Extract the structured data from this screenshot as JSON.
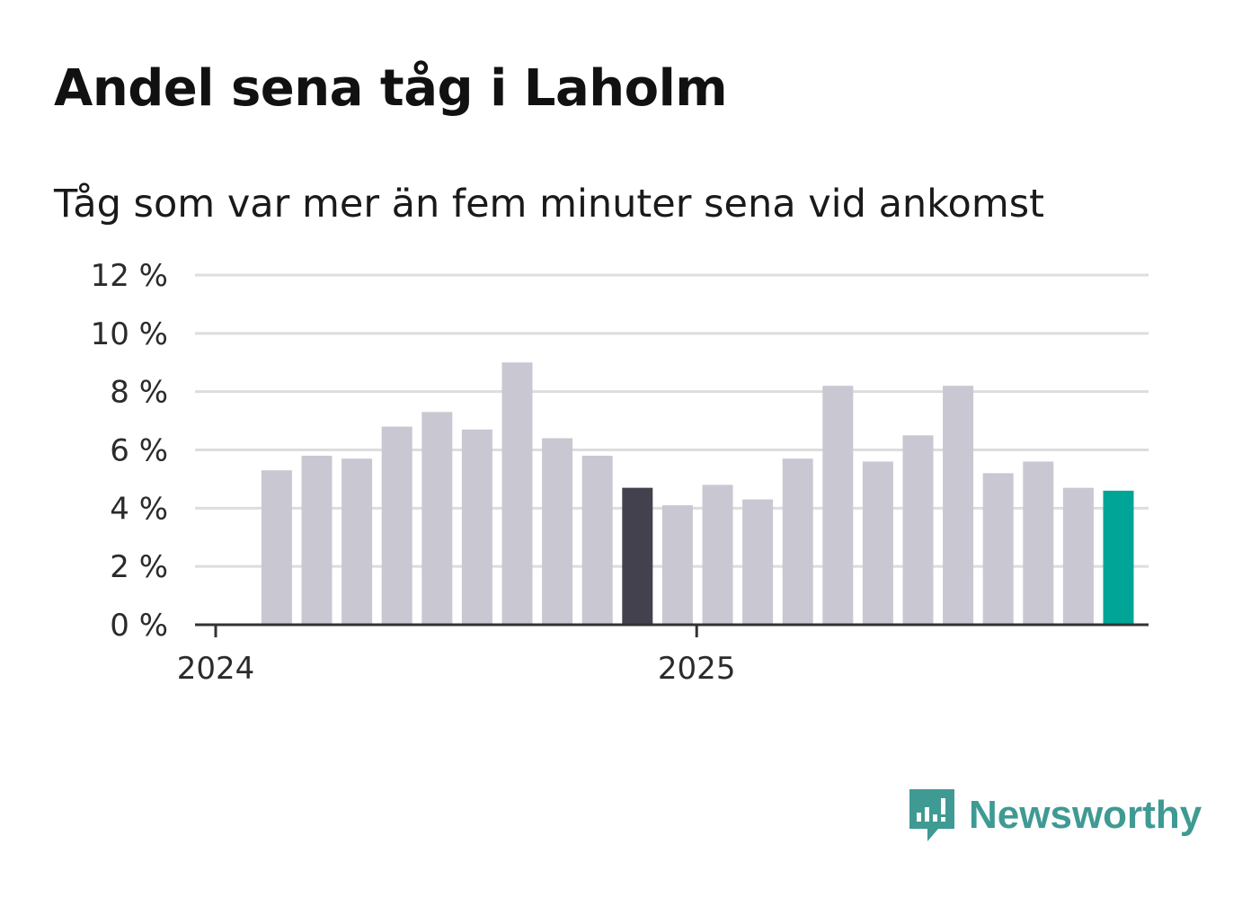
{
  "header": {
    "title": "Andel sena tåg i Laholm",
    "subtitle": "Tåg som var mer än fem minuter sena vid ankomst"
  },
  "brand": {
    "name": "Newsworthy",
    "icon": "newsworthy-logo-icon",
    "color": "#3f9a93"
  },
  "colors": {
    "bar_default": "#c9c7d2",
    "bar_highlight_dark": "#43414d",
    "bar_highlight_latest": "#00a598",
    "grid": "#dddddd",
    "axis": "#333333"
  },
  "chart_data": {
    "type": "bar",
    "title": "Andel sena tåg i Laholm",
    "subtitle": "Tåg som var mer än fem minuter sena vid ankomst",
    "xlabel": "",
    "ylabel": "",
    "ylim": [
      0,
      12
    ],
    "y_ticks": [
      0,
      2,
      4,
      6,
      8,
      10,
      12
    ],
    "y_tick_suffix": " %",
    "x_ticks": [
      "2024",
      "2025"
    ],
    "grid": true,
    "categories": [
      "2024-02",
      "2024-03",
      "2024-04",
      "2024-05",
      "2024-06",
      "2024-07",
      "2024-08",
      "2024-09",
      "2024-10",
      "2024-11",
      "2024-12",
      "2025-01",
      "2025-02",
      "2025-03",
      "2025-04",
      "2025-05",
      "2025-06",
      "2025-07",
      "2025-08",
      "2025-09",
      "2025-10",
      "2025-11"
    ],
    "values": [
      5.3,
      5.8,
      5.7,
      6.8,
      7.3,
      6.7,
      9.0,
      6.4,
      5.8,
      4.7,
      4.1,
      4.8,
      4.3,
      5.7,
      8.2,
      5.6,
      6.5,
      8.2,
      5.2,
      5.6,
      4.7,
      4.6
    ],
    "highlight": {
      "2024-11": "dark",
      "2025-11": "latest"
    }
  }
}
